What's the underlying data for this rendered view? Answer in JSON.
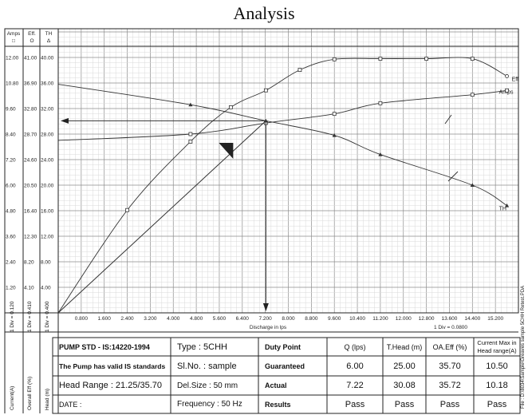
{
  "title": "Analysis",
  "axes": {
    "left_headers": [
      {
        "name": "Amps",
        "symbol": "□"
      },
      {
        "name": "Eff.",
        "symbol": "O"
      },
      {
        "name": "TH",
        "symbol": "Δ"
      }
    ],
    "amps_ticks": [
      "12.00",
      "10.80",
      "9.60",
      "8.40",
      "7.20",
      "6.00",
      "4.80",
      "3.60",
      "2.40",
      "1.20"
    ],
    "eff_ticks": [
      "41.00",
      "36.90",
      "32.80",
      "28.70",
      "24.60",
      "20.50",
      "16.40",
      "12.30",
      "8.20",
      "4.10"
    ],
    "th_ticks": [
      "40.00",
      "36.00",
      "32.00",
      "28.00",
      "24.00",
      "20.00",
      "16.00",
      "12.00",
      "8.00",
      "4.00"
    ],
    "x_ticks": [
      "0.800",
      "1.600",
      "2.400",
      "3.200",
      "4.000",
      "4.800",
      "5.600",
      "6.400",
      "7.200",
      "8.000",
      "8.800",
      "9.600",
      "10.400",
      "11.200",
      "12.000",
      "12.800",
      "13.600",
      "14.400",
      "15.200"
    ],
    "xlabel": "Discharge in lps",
    "x_div_note": "1 Div = 0.0800",
    "rotated_left": [
      {
        "top": "1 Div = 0.120",
        "bottom": "Current(A)"
      },
      {
        "top": "1 Div = 0.410",
        "bottom": "Overall Eff (%)"
      },
      {
        "top": "1 Div = 0.400",
        "bottom": "Head (m)"
      }
    ],
    "file_note": "File : D:\\8034\\Sample\\Greaves sample 5CHH Retest.PDA"
  },
  "chart_data": {
    "type": "line",
    "x_unit": "lps",
    "xlim": [
      0,
      16
    ],
    "series": [
      {
        "name": "Amps",
        "axis": "Amps",
        "ylim": [
          0,
          12
        ],
        "x": [
          0,
          4.6,
          7.22,
          9.6,
          11.2,
          14.4,
          15.6
        ],
        "y": [
          8.1,
          8.4,
          8.92,
          9.35,
          9.85,
          10.25,
          10.45
        ]
      },
      {
        "name": "Eff",
        "axis": "Eff",
        "ylim": [
          0,
          41
        ],
        "x": [
          0,
          2.4,
          4.6,
          6.0,
          7.22,
          8.4,
          9.6,
          11.2,
          12.8,
          14.4,
          15.6
        ],
        "y": [
          0,
          16.5,
          27.5,
          33.0,
          35.72,
          39.0,
          40.7,
          40.8,
          40.8,
          40.8,
          38.0
        ]
      },
      {
        "name": "TH",
        "axis": "TH",
        "ylim": [
          0,
          40
        ],
        "x": [
          0,
          4.6,
          7.22,
          9.6,
          11.2,
          14.4,
          15.6
        ],
        "y": [
          35.8,
          32.6,
          30.08,
          27.8,
          24.8,
          20.0,
          16.8
        ]
      }
    ],
    "duty_point": {
      "x": 7.22,
      "head": 30.08
    }
  },
  "table": {
    "std": "PUMP STD - IS:14220-1994",
    "valid": "The Pump has valid IS standards",
    "head_range": "Head Range : 21.25/35.70",
    "date": "DATE :",
    "type": "Type   : 5CHH",
    "slno": "Sl.No. : sample",
    "delsize": "Del.Size      : 50 mm",
    "frequency": "Frequency   : 50 Hz",
    "col_headers": [
      "Duty Point",
      "Q (lps)",
      "T.Head (m)",
      "OA.Eff (%)",
      "Current Max in Head range(A)"
    ],
    "rows": [
      {
        "label": "Guaranteed",
        "values": [
          "6.00",
          "25.00",
          "35.70",
          "10.50"
        ]
      },
      {
        "label": "Actual",
        "values": [
          "7.22",
          "30.08",
          "35.72",
          "10.18"
        ]
      },
      {
        "label": "Results",
        "values": [
          "Pass",
          "Pass",
          "Pass",
          "Pass"
        ]
      }
    ]
  }
}
